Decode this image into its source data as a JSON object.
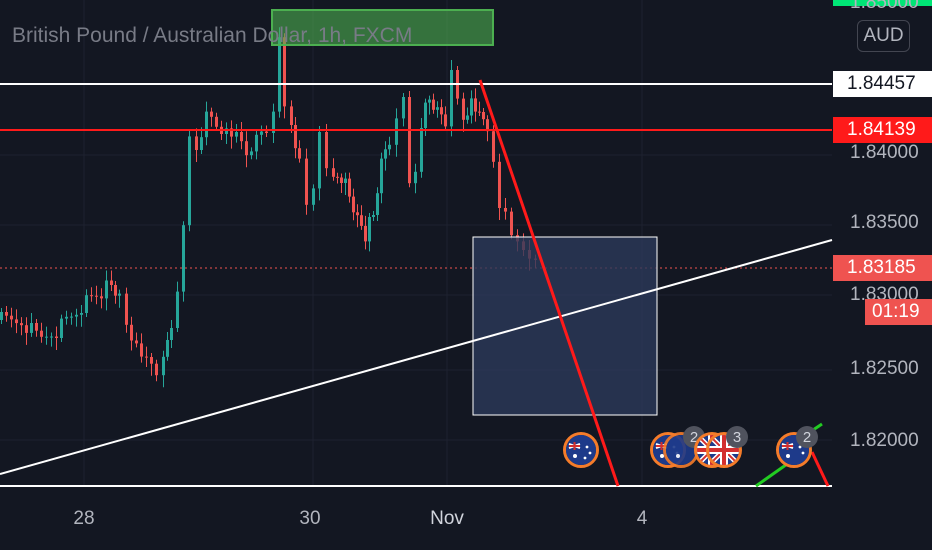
{
  "header": {
    "title": "British Pound / Australian Dollar, 1h, FXCM",
    "currency_button": "AUD"
  },
  "price_axis": {
    "top_partial_label": "1.85000",
    "labels": [
      "1.84000",
      "1.83500",
      "1.83000",
      "1.82500",
      "1.82000"
    ],
    "horizontal_line_white": "1.84457",
    "horizontal_line_red": "1.84139",
    "last_price": "1.83185",
    "countdown": "01:19"
  },
  "time_axis": {
    "labels": [
      "28",
      "30",
      "Nov",
      "4"
    ]
  },
  "events": [
    {
      "flag": "AU",
      "count": ""
    },
    {
      "flag": "AU",
      "count": "2"
    },
    {
      "flag": "GB",
      "count": "3"
    },
    {
      "flag": "AU",
      "count": "2"
    }
  ],
  "colors": {
    "background": "#131722",
    "up_candle": "#26a69a",
    "down_candle": "#ef5350",
    "red_line": "#ff1a1a",
    "white_line": "#ffffff",
    "rectangle_fill": "#2c3a5a",
    "green_box": "#4caf50",
    "event_ring": "#f57c2a"
  }
}
